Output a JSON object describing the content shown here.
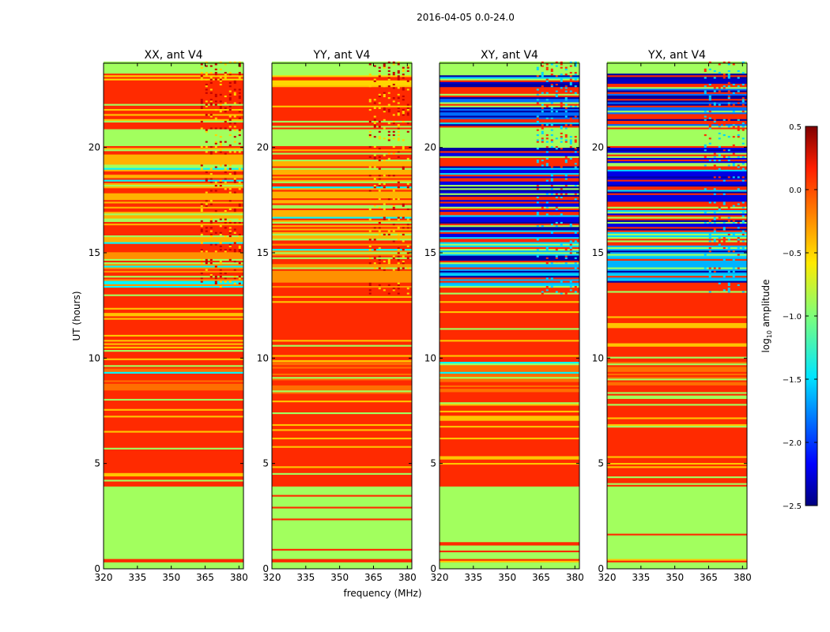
{
  "suptitle": "2016-04-05 0.0-24.0",
  "chart_data": {
    "type": "heatmap",
    "xlabel": "frequency (MHz)",
    "ylabel": "UT (hours)",
    "xlim": [
      320,
      382
    ],
    "ylim": [
      0,
      24
    ],
    "xticks": [
      "320",
      "335",
      "350",
      "365",
      "380"
    ],
    "xtick_values": [
      320,
      335,
      350,
      365,
      380
    ],
    "yticks": [
      "0",
      "5",
      "10",
      "15",
      "20"
    ],
    "ytick_values": [
      0,
      5,
      10,
      15,
      20
    ],
    "panels": [
      {
        "title": "XX, ant V4",
        "kind": "auto"
      },
      {
        "title": "YY, ant V4",
        "kind": "auto"
      },
      {
        "title": "XY, ant V4",
        "kind": "cross"
      },
      {
        "title": "YX, ant V4",
        "kind": "cross"
      }
    ],
    "colorbar": {
      "label": "log10 amplitude",
      "label_base": "log",
      "label_sub": "10",
      "label_rest": " amplitude",
      "min": -2.5,
      "max": 0.5,
      "colormap": "jet",
      "ticks": [
        "0.5",
        "0.0",
        "−0.5",
        "−1.0",
        "−1.5",
        "−2.0",
        "−2.5"
      ],
      "tick_values": [
        0.5,
        0.0,
        -0.5,
        -1.0,
        -1.5,
        -2.0,
        -2.5
      ]
    },
    "band_levels": {
      "auto_low_state": -0.9,
      "auto_high_state": 0.0,
      "cross_low_state": -0.9,
      "cross_high_state": 0.0,
      "rfi_band_mhz": [
        363,
        382
      ]
    },
    "time_segments": [
      {
        "from": 0.0,
        "to": 0.3,
        "auto": -0.9,
        "cross": -0.9
      },
      {
        "from": 0.3,
        "to": 0.45,
        "auto": 0.0,
        "cross": 0.0
      },
      {
        "from": 0.45,
        "to": 3.9,
        "auto": -0.9,
        "cross": -0.9
      },
      {
        "from": 3.9,
        "to": 8.3,
        "auto": 0.0,
        "cross": 0.0
      },
      {
        "from": 8.3,
        "to": 9.8,
        "auto": -0.2,
        "cross": -0.2
      },
      {
        "from": 9.8,
        "to": 13.3,
        "auto": 0.0,
        "cross": 0.0
      },
      {
        "from": 13.3,
        "to": 15.5,
        "auto": -0.3,
        "cross": -1.6
      },
      {
        "from": 15.5,
        "to": 20.0,
        "auto": -0.4,
        "cross": -2.2
      },
      {
        "from": 20.0,
        "to": 20.8,
        "auto": -0.9,
        "cross": -0.9
      },
      {
        "from": 20.8,
        "to": 22.9,
        "auto": 0.0,
        "cross": -1.8
      },
      {
        "from": 22.9,
        "to": 23.5,
        "auto": -0.5,
        "cross": -2.3
      },
      {
        "from": 23.5,
        "to": 24.0,
        "auto": -0.9,
        "cross": -0.9
      }
    ]
  }
}
